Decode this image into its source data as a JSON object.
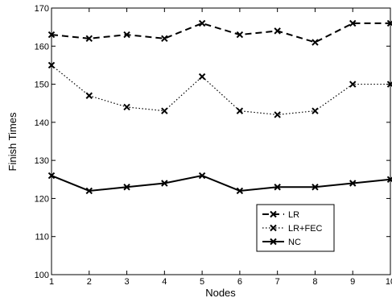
{
  "chart_data": {
    "type": "line",
    "xlabel": "Nodes",
    "ylabel": "Finish Times",
    "xlim": [
      1,
      10
    ],
    "ylim": [
      100,
      170
    ],
    "xticks": [
      1,
      2,
      3,
      4,
      5,
      6,
      7,
      8,
      9,
      10
    ],
    "yticks": [
      100,
      110,
      120,
      130,
      140,
      150,
      160,
      170
    ],
    "grid": false,
    "legend_position": "lower-right",
    "x": [
      1,
      2,
      3,
      4,
      5,
      6,
      7,
      8,
      9,
      10
    ],
    "series": [
      {
        "name": "LR",
        "line_style": "dashed",
        "marker": "x",
        "color": "#000000",
        "values": [
          163,
          162,
          163,
          162,
          166,
          163,
          164,
          161,
          166,
          166
        ]
      },
      {
        "name": "LR+FEC",
        "line_style": "dotted",
        "marker": "x",
        "color": "#000000",
        "values": [
          155,
          147,
          144,
          143,
          152,
          143,
          142,
          143,
          150,
          150
        ]
      },
      {
        "name": "NC",
        "line_style": "solid",
        "marker": "x",
        "color": "#000000",
        "values": [
          126,
          122,
          123,
          124,
          126,
          122,
          123,
          123,
          124,
          125
        ]
      }
    ]
  }
}
